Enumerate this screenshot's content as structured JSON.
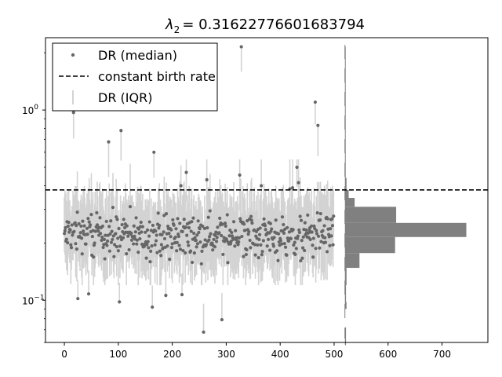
{
  "chart_data": {
    "type": "scatter",
    "title": "λ₂ = 0.31622776601683794",
    "title_main": "= 0.31622776601683794",
    "title_symbol": "λ",
    "title_subscript": "2",
    "xlabel": "",
    "ylabel": "",
    "xlim": [
      -35,
      785
    ],
    "ylim": [
      0.06,
      2.4
    ],
    "yscale": "log",
    "x_ticks": [
      0,
      100,
      200,
      300,
      400,
      500,
      600,
      700
    ],
    "x_tick_labels": [
      "0",
      "100",
      "200",
      "300",
      "400",
      "500",
      "600",
      "700"
    ],
    "y_ticks": [
      0.1,
      1
    ],
    "y_tick_base": "10",
    "y_tick_exponents": [
      "−1",
      "0"
    ],
    "grid": false,
    "legend": {
      "placement": "upper-left",
      "entries": [
        {
          "label": "DR (median)",
          "marker": "dot"
        },
        {
          "label": "constant birth rate",
          "marker": "dashed-line"
        },
        {
          "label": "DR (IQR)",
          "marker": "vertical-bar"
        }
      ]
    },
    "colors": {
      "median": "#666666",
      "iqr": "#d3d3d3",
      "birth_rate_line": "#000000",
      "histogram": "#808080"
    },
    "constant_birth_rate": 0.38,
    "n_tips": 500,
    "highlighted_medians": [
      {
        "x": 17,
        "y": 0.97
      },
      {
        "x": 25,
        "y": 0.102
      },
      {
        "x": 45,
        "y": 0.108
      },
      {
        "x": 82,
        "y": 0.68
      },
      {
        "x": 102,
        "y": 0.098
      },
      {
        "x": 105,
        "y": 0.78
      },
      {
        "x": 163,
        "y": 0.092
      },
      {
        "x": 166,
        "y": 0.6
      },
      {
        "x": 188,
        "y": 0.106
      },
      {
        "x": 216,
        "y": 0.4
      },
      {
        "x": 218,
        "y": 0.107
      },
      {
        "x": 226,
        "y": 0.47
      },
      {
        "x": 258,
        "y": 0.068
      },
      {
        "x": 264,
        "y": 0.43
      },
      {
        "x": 292,
        "y": 0.079
      },
      {
        "x": 325,
        "y": 0.455
      },
      {
        "x": 328,
        "y": 2.15
      },
      {
        "x": 365,
        "y": 0.4
      },
      {
        "x": 418,
        "y": 0.385
      },
      {
        "x": 423,
        "y": 0.39
      },
      {
        "x": 431,
        "y": 0.5
      },
      {
        "x": 434,
        "y": 0.415
      },
      {
        "x": 465,
        "y": 1.1
      },
      {
        "x": 470,
        "y": 0.83
      }
    ],
    "bulk_median_range": [
      0.15,
      0.32
    ],
    "bulk_iqr_range": [
      0.12,
      0.55
    ],
    "histogram": {
      "orientation": "horizontal",
      "x_offset": 520,
      "bins": [
        {
          "y_low": 0.058,
          "y_high": 0.072,
          "count": 2
        },
        {
          "y_low": 0.09,
          "y_high": 0.098,
          "count": 3
        },
        {
          "y_low": 0.098,
          "y_high": 0.12,
          "count": 2
        },
        {
          "y_low": 0.12,
          "y_high": 0.148,
          "count": 3
        },
        {
          "y_low": 0.148,
          "y_high": 0.177,
          "count": 27
        },
        {
          "y_low": 0.177,
          "y_high": 0.215,
          "count": 93
        },
        {
          "y_low": 0.215,
          "y_high": 0.255,
          "count": 225
        },
        {
          "y_low": 0.255,
          "y_high": 0.31,
          "count": 95
        },
        {
          "y_low": 0.31,
          "y_high": 0.345,
          "count": 18
        },
        {
          "y_low": 0.345,
          "y_high": 0.38,
          "count": 7
        },
        {
          "y_low": 0.38,
          "y_high": 0.44,
          "count": 3
        },
        {
          "y_low": 0.44,
          "y_high": 0.75,
          "count": 1
        },
        {
          "y_low": 0.75,
          "y_high": 2.15,
          "count": 1
        }
      ]
    }
  }
}
